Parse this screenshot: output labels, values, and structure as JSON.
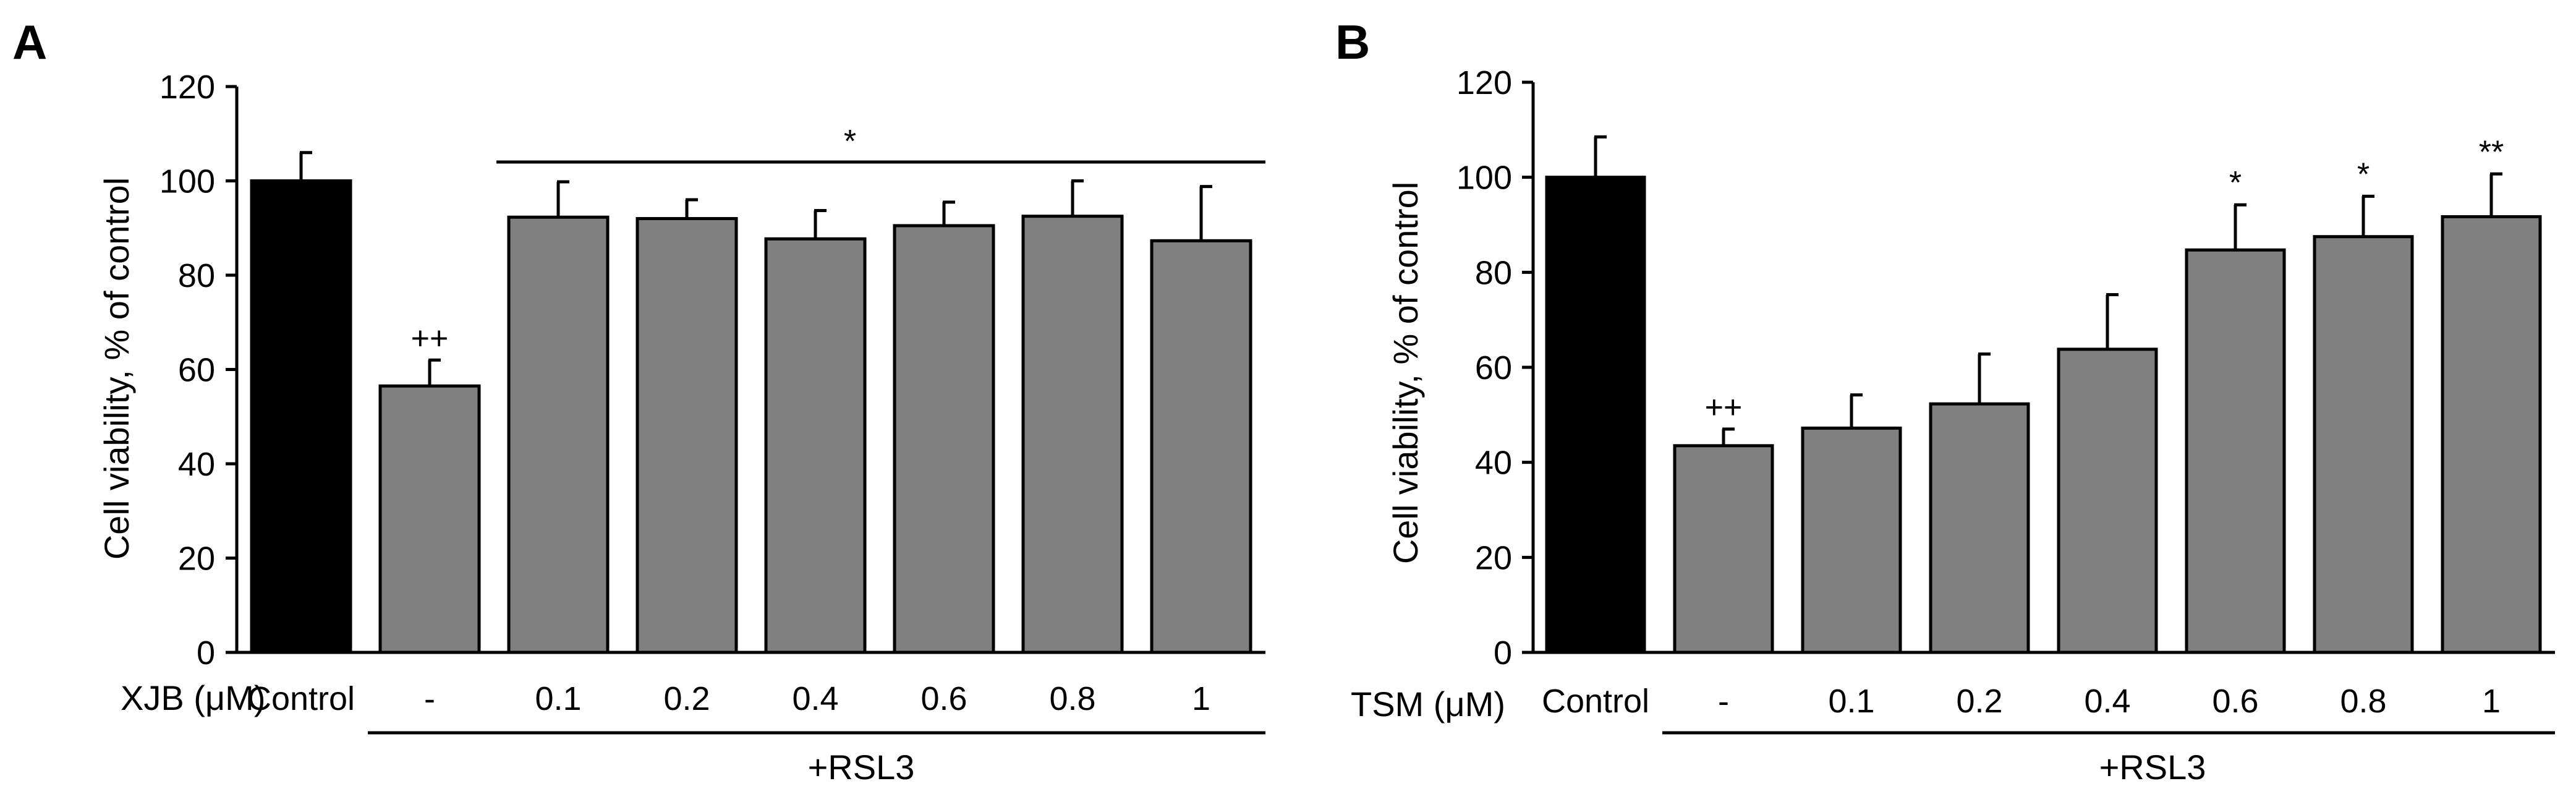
{
  "chart_data": [
    {
      "panel_label": "A",
      "type": "bar",
      "ylabel": "Cell viability, % of control",
      "ylim": [
        0,
        120
      ],
      "yticks": [
        0,
        20,
        40,
        60,
        80,
        100,
        120
      ],
      "x_row_label": "XJB (μM)",
      "categories": [
        "Control",
        "-",
        "0.1",
        "0.2",
        "0.4",
        "0.6",
        "0.8",
        "1"
      ],
      "values": [
        100,
        56.5,
        92.3,
        92.0,
        87.7,
        90.5,
        92.5,
        87.3
      ],
      "errors": [
        6,
        5.5,
        7.5,
        4,
        6,
        5,
        7.5,
        11.5
      ],
      "colors": [
        "#000000",
        "#808080",
        "#808080",
        "#808080",
        "#808080",
        "#808080",
        "#808080",
        "#808080"
      ],
      "bar_annotations": [
        "",
        "++",
        "",
        "",
        "",
        "",
        "",
        ""
      ],
      "group_line": {
        "from": 2,
        "to": 7,
        "label": "*"
      },
      "treatment_label": "+RSL3",
      "treatment_from": 1,
      "treatment_to": 7
    },
    {
      "panel_label": "B",
      "type": "bar",
      "ylabel": "Cell viability, % of control",
      "ylim": [
        0,
        120
      ],
      "yticks": [
        0,
        20,
        40,
        60,
        80,
        100,
        120
      ],
      "x_row_label": "TSM (μM)",
      "categories": [
        "Control",
        "-",
        "0.1",
        "0.2",
        "0.4",
        "0.6",
        "0.8",
        "1"
      ],
      "values": [
        100,
        43.5,
        47.2,
        52.3,
        63.8,
        84.7,
        87.5,
        91.7
      ],
      "errors": [
        8.5,
        3.5,
        7,
        10.5,
        11.5,
        9.5,
        8.5,
        9
      ],
      "colors": [
        "#000000",
        "#808080",
        "#808080",
        "#808080",
        "#808080",
        "#808080",
        "#808080",
        "#808080"
      ],
      "bar_annotations": [
        "",
        "++",
        "",
        "",
        "",
        "*",
        "*",
        "**"
      ],
      "treatment_label": "+RSL3",
      "treatment_from": 1,
      "treatment_to": 7
    }
  ]
}
